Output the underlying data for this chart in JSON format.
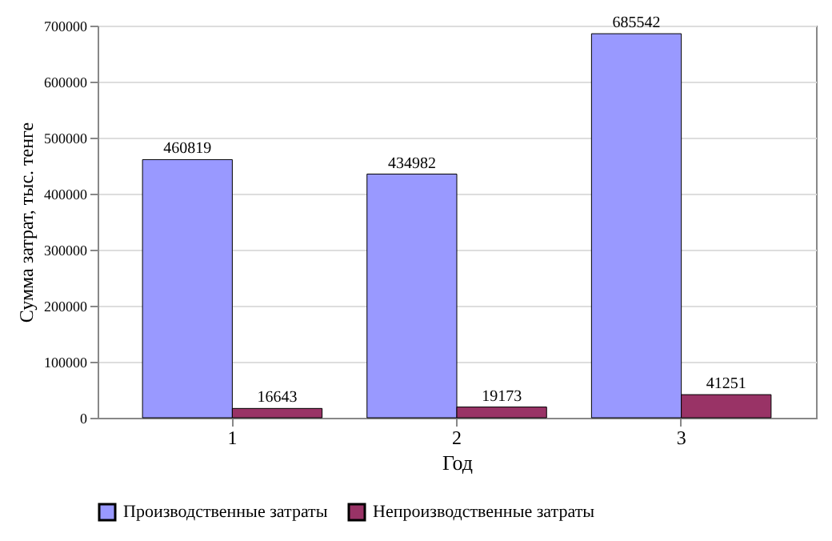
{
  "chart_data": {
    "type": "bar",
    "xlabel": "Год",
    "ylabel": "Сумма затрат, тыс. тенге",
    "categories": [
      "1",
      "2",
      "3"
    ],
    "series": [
      {
        "name": "Производственные затраты",
        "color": "#9999ff",
        "values": [
          460819,
          434982,
          685542
        ]
      },
      {
        "name": "Непроизводственные затраты",
        "color": "#993366",
        "values": [
          16643,
          19173,
          41251
        ]
      }
    ],
    "ylim": [
      0,
      700000
    ],
    "yticks": [
      0,
      100000,
      200000,
      300000,
      400000,
      500000,
      600000,
      700000
    ],
    "grid": "y",
    "legend": "bottom",
    "data_labels": true
  }
}
